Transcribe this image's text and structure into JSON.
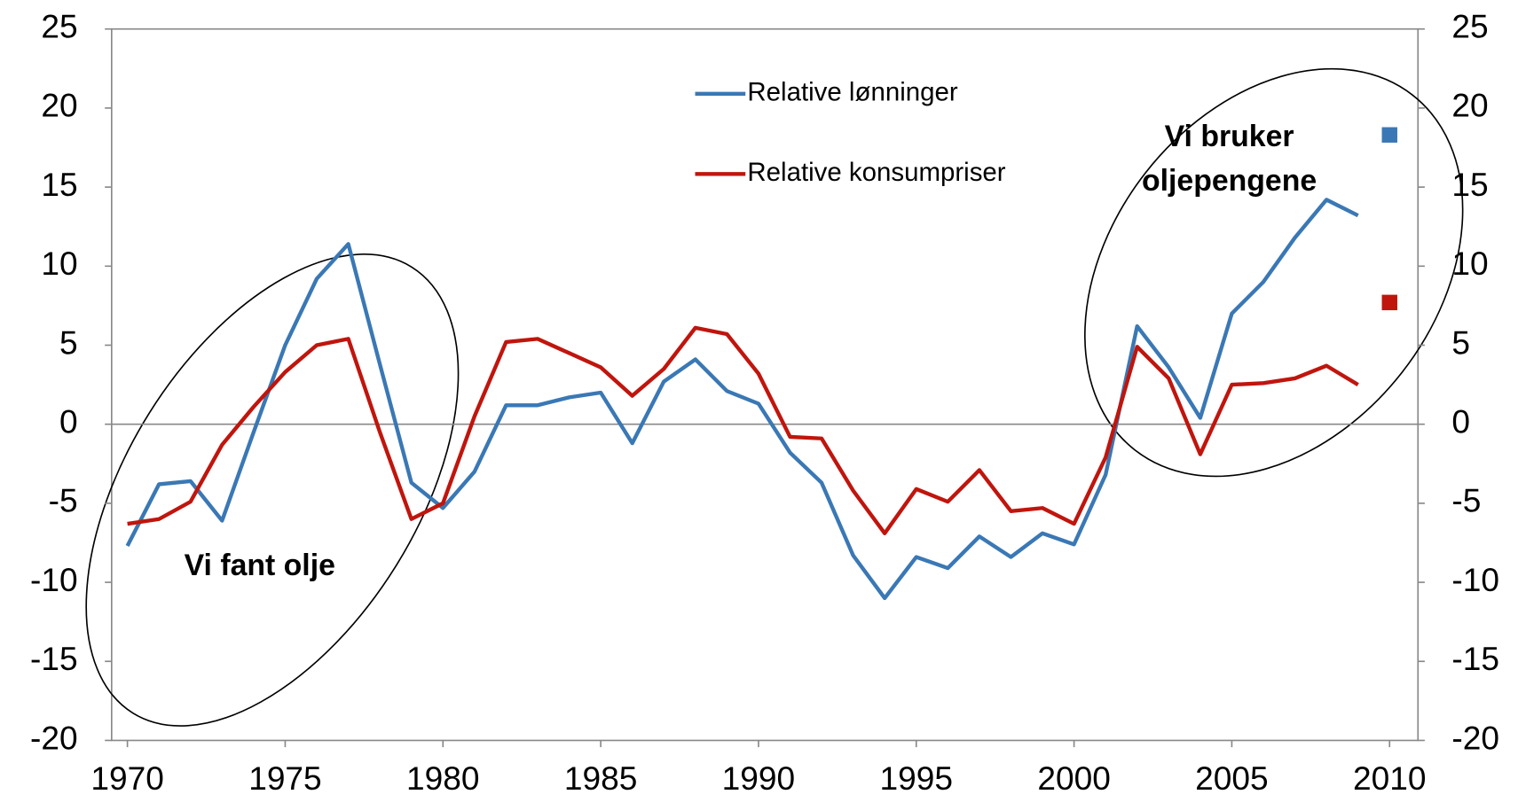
{
  "chart_data": {
    "type": "line",
    "x": [
      1970,
      1971,
      1972,
      1973,
      1974,
      1975,
      1976,
      1977,
      1978,
      1979,
      1980,
      1981,
      1982,
      1983,
      1984,
      1985,
      1986,
      1987,
      1988,
      1989,
      1990,
      1991,
      1992,
      1993,
      1994,
      1995,
      1996,
      1997,
      1998,
      1999,
      2000,
      2001,
      2002,
      2003,
      2004,
      2005,
      2006,
      2007,
      2008,
      2009
    ],
    "series": [
      {
        "name": "Relative lønninger",
        "color": "#3a78b5",
        "values": [
          -7.7,
          -3.8,
          -3.6,
          -6.1,
          -0.5,
          5.0,
          9.2,
          11.4,
          3.8,
          -3.7,
          -5.3,
          -3.0,
          1.2,
          1.2,
          1.7,
          2.0,
          -1.2,
          2.7,
          4.1,
          2.1,
          1.3,
          -1.8,
          -3.7,
          -8.3,
          -11.0,
          -8.4,
          -9.1,
          -7.1,
          -8.4,
          -6.9,
          -7.6,
          -3.2,
          6.2,
          3.6,
          0.4,
          7.0,
          9.0,
          11.8,
          14.2,
          13.2
        ],
        "marker_x": 2010,
        "marker_value": 18.3
      },
      {
        "name": "Relative konsumpriser",
        "color": "#c0150d",
        "values": [
          -6.3,
          -6.0,
          -4.9,
          -1.3,
          1.1,
          3.3,
          5.0,
          5.4,
          -0.5,
          -6.0,
          -5.0,
          0.5,
          5.2,
          5.4,
          4.5,
          3.6,
          1.8,
          3.5,
          6.1,
          5.7,
          3.2,
          -0.8,
          -0.9,
          -4.2,
          -6.9,
          -4.1,
          -4.9,
          -2.9,
          -5.5,
          -5.3,
          -6.3,
          -2.1,
          4.9,
          2.9,
          -1.9,
          2.5,
          2.6,
          2.9,
          3.7,
          2.5
        ],
        "marker_x": 2010,
        "marker_value": 7.7
      }
    ],
    "xlim": [
      1969.5,
      2010.9
    ],
    "xticks": [
      1970,
      1975,
      1980,
      1985,
      1990,
      1995,
      2000,
      2005,
      2010
    ],
    "ylim": [
      -20,
      25
    ],
    "yticks": [
      -20,
      -15,
      -10,
      -5,
      0,
      5,
      10,
      15,
      20,
      25
    ],
    "y2lim": [
      -20,
      25
    ],
    "y2ticks": [
      -20,
      -15,
      -10,
      -5,
      0,
      5,
      10,
      15,
      20,
      25
    ],
    "annotations": [
      {
        "lines": [
          "Vi fant olje"
        ]
      },
      {
        "lines": [
          "Vi bruker",
          "oljepengene"
        ]
      }
    ],
    "grid": false,
    "legend": "top"
  }
}
